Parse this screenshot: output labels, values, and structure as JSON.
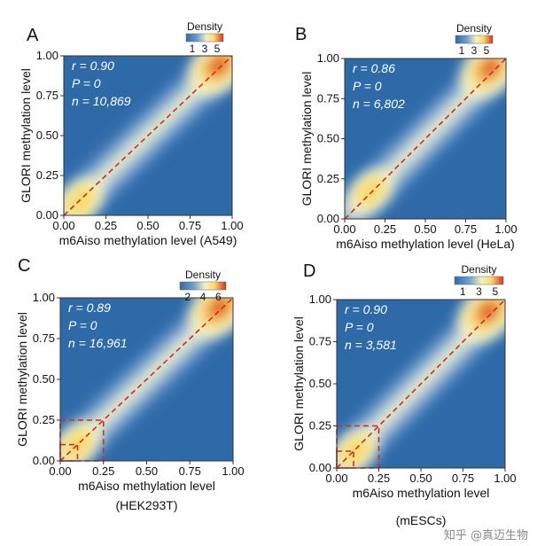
{
  "figure": {
    "watermark": "知乎 @真迈生物",
    "legend_title": "Density",
    "colors": {
      "low": "#2f6aa8",
      "mid_low": "#6f9fd0",
      "mid": "#f3f1c4",
      "mid_high": "#f8dc6c",
      "high": "#d8321f",
      "diagonal": "#d22a22",
      "box": "#d22a22",
      "stats_text": "#ffffff"
    }
  },
  "chart_data": [
    {
      "panel": "A",
      "type": "heatmap",
      "xlabel": "m6Aiso methylation level (A549)",
      "ylabel": "GLORI methylation level",
      "xlim": [
        0,
        1
      ],
      "ylim": [
        0,
        1
      ],
      "x_ticks": [
        "0.00",
        "0.25",
        "0.50",
        "0.75",
        "1.00"
      ],
      "y_ticks": [
        "0.00",
        "0.25",
        "0.50",
        "0.75",
        "1.00"
      ],
      "stats": [
        "r = 0.90",
        "P = 0",
        "n = 10,869"
      ],
      "legend_ticks": [
        "1",
        "3",
        "5"
      ],
      "legend_range": [
        0,
        6
      ],
      "grid": false,
      "diagonal": true,
      "hotspots": [
        {
          "x": 0.92,
          "y": 0.94,
          "density": 5.8
        },
        {
          "x": 0.1,
          "y": 0.09,
          "density": 2.8
        }
      ],
      "highlight_boxes": []
    },
    {
      "panel": "B",
      "type": "heatmap",
      "xlabel": "m6Aiso methylation level (HeLa)",
      "ylabel": "GLORI methylation level",
      "xlim": [
        0,
        1
      ],
      "ylim": [
        0,
        1
      ],
      "x_ticks": [
        "0.00",
        "0.25",
        "0.50",
        "0.75",
        "1.00"
      ],
      "y_ticks": [
        "0.00",
        "0.25",
        "0.50",
        "0.75",
        "1.00"
      ],
      "stats": [
        "r = 0.86",
        "P = 0",
        "n = 6,802"
      ],
      "legend_ticks": [
        "1",
        "3",
        "5"
      ],
      "legend_range": [
        0,
        6
      ],
      "grid": false,
      "diagonal": true,
      "hotspots": [
        {
          "x": 0.9,
          "y": 0.94,
          "density": 5.5
        },
        {
          "x": 0.16,
          "y": 0.17,
          "density": 2.6
        }
      ],
      "highlight_boxes": []
    },
    {
      "panel": "C",
      "type": "heatmap",
      "xlabel": "m6Aiso methylation level",
      "xlabel_sub": "(HEK293T)",
      "ylabel": "GLORI methylation level",
      "xlim": [
        0,
        1
      ],
      "ylim": [
        0,
        1
      ],
      "x_ticks": [
        "0.00",
        "0.25",
        "0.50",
        "0.75",
        "1.00"
      ],
      "y_ticks": [
        "0.00",
        "0.25",
        "0.50",
        "0.75",
        "1.00"
      ],
      "stats": [
        "r = 0.89",
        "P = 0",
        "n = 16,961"
      ],
      "legend_ticks": [
        "2",
        "4",
        "6"
      ],
      "legend_range": [
        1,
        7
      ],
      "grid": false,
      "diagonal": true,
      "hotspots": [
        {
          "x": 0.92,
          "y": 0.94,
          "density": 6.8
        },
        {
          "x": 0.1,
          "y": 0.1,
          "density": 3.8
        }
      ],
      "highlight_boxes": [
        [
          0,
          0.25
        ],
        [
          0,
          0.1
        ]
      ]
    },
    {
      "panel": "D",
      "type": "heatmap",
      "xlabel": "m6Aiso methylation level",
      "xlabel_sub": "(mESCs)",
      "ylabel": "GLORI methylation level",
      "xlim": [
        0,
        1
      ],
      "ylim": [
        0,
        1
      ],
      "x_ticks": [
        "0.00",
        "0.25",
        "0.50",
        "0.75",
        "1.00"
      ],
      "y_ticks": [
        "0.00",
        "0.25",
        "0.50",
        "0.75",
        "1.00"
      ],
      "stats": [
        "r = 0.90",
        "P = 0",
        "n = 3,581"
      ],
      "legend_ticks": [
        "1",
        "3",
        "5"
      ],
      "legend_range": [
        0,
        6
      ],
      "grid": false,
      "diagonal": true,
      "hotspots": [
        {
          "x": 0.9,
          "y": 0.93,
          "density": 5.8
        },
        {
          "x": 0.11,
          "y": 0.1,
          "density": 2.6
        }
      ],
      "highlight_boxes": [
        [
          0,
          0.25
        ],
        [
          0,
          0.1
        ]
      ]
    }
  ]
}
